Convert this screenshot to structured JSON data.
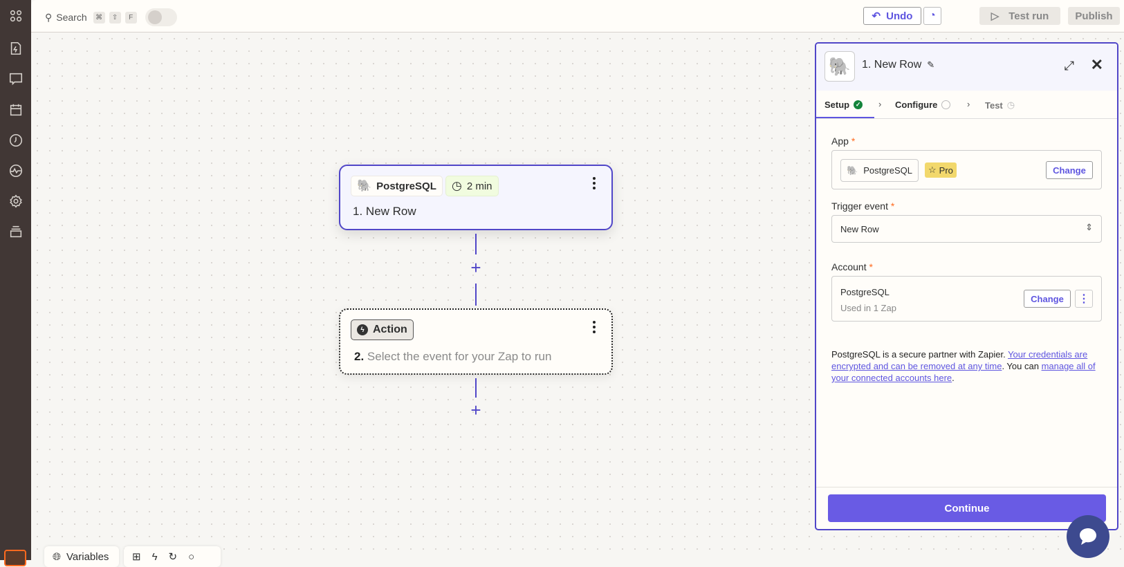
{
  "topbar": {
    "search_label": "Search",
    "shortcut_keys": [
      "⌘",
      "⇧",
      "F"
    ],
    "undo_label": "Undo",
    "test_run_label": "Test run",
    "publish_label": "Publish"
  },
  "sidebar": {
    "icons": [
      "apps-icon",
      "zap-file-icon",
      "chat-icon",
      "calendar-icon",
      "history-icon",
      "activity-icon",
      "settings-icon",
      "stack-icon"
    ]
  },
  "canvas": {
    "trigger": {
      "app": "PostgreSQL",
      "poll_time": "2 min",
      "step": "1.",
      "title": "New Row"
    },
    "action": {
      "chip": "Action",
      "step": "2.",
      "placeholder": "Select the event for your Zap to run"
    },
    "add_step_symbol": "+"
  },
  "panel": {
    "title": "1. New Row",
    "tabs": [
      {
        "label": "Setup",
        "status": "complete"
      },
      {
        "label": "Configure",
        "status": "pending"
      },
      {
        "label": "Test",
        "status": "pending"
      }
    ],
    "app_label": "App",
    "app_name": "PostgreSQL",
    "app_badge": "Pro",
    "change_label": "Change",
    "trigger_label": "Trigger event",
    "trigger_value": "New Row",
    "account_label": "Account",
    "account_name": "PostgreSQL",
    "account_usage": "Used in 1 Zap",
    "required_mark": "*",
    "info_text_1": "PostgreSQL is a secure partner with Zapier. ",
    "info_link_1": "Your credentials are encrypted and can be removed at any time",
    "info_text_2": ". You can ",
    "info_link_2": "manage all of your connected accounts here",
    "info_text_3": ".",
    "continue_label": "Continue"
  },
  "bottom_toolbar": {
    "variables_label": "Variables"
  },
  "colors": {
    "accent": "#5046c8",
    "button": "#695be4",
    "sidebar": "#413735",
    "pro_badge": "#f2d86c",
    "success": "#14843b",
    "required": "#ff6a1f"
  }
}
